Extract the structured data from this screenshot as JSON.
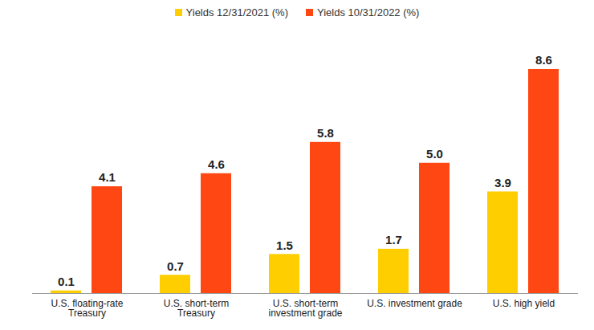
{
  "chart_data": {
    "type": "bar",
    "categories": [
      "U.S. floating-rate\nTreasury",
      "U.S. short-term\nTreasury",
      "U.S. short-term\ninvestment grade",
      "U.S. investment grade",
      "U.S. high yield"
    ],
    "series": [
      {
        "name": "Yields 12/31/2021 (%)",
        "color": "#FFCE00",
        "values": [
          0.1,
          0.7,
          1.5,
          1.7,
          3.9
        ],
        "value_labels": [
          "0.1",
          "0.7",
          "1.5",
          "1.7",
          "3.9"
        ]
      },
      {
        "name": "Yields 10/31/2022 (%)",
        "color": "#FF4713",
        "values": [
          4.1,
          4.6,
          5.8,
          5.0,
          8.6
        ],
        "value_labels": [
          "4.1",
          "4.6",
          "5.8",
          "5.0",
          "8.6"
        ]
      }
    ],
    "ylim": [
      0,
      9.4
    ],
    "data_labels": true,
    "legend": "top",
    "tick_labels": "x",
    "grid": false
  }
}
